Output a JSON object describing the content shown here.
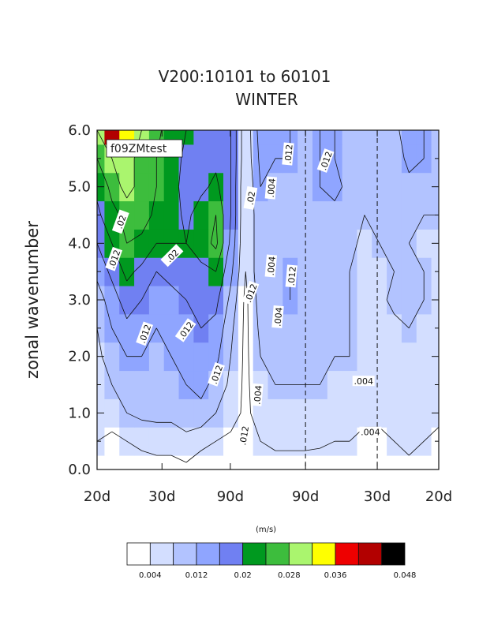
{
  "chart_data": {
    "type": "heatmap",
    "title": "V200:10101 to 60101",
    "subtitle": "WINTER",
    "ylabel": "zonal wavenumber",
    "ylim": [
      0,
      6
    ],
    "y_ticks": [
      "0.0",
      "1.0",
      "2.0",
      "3.0",
      "4.0",
      "5.0",
      "6.0"
    ],
    "x_ticks": [
      "20d",
      "30d",
      "90d",
      "90d",
      "30d",
      "20d"
    ],
    "dashed_lines_at_x_labels": [
      "90d",
      "30d"
    ],
    "inset_label": "f09ZMtest",
    "contour_labels": [
      ".02",
      ".012",
      ".012",
      ".02",
      ".012",
      ".012",
      ".012",
      ".02",
      ".012",
      ".004",
      ".004",
      ".004",
      ".012",
      ".004",
      ".012",
      ".012",
      ".004",
      ".004"
    ],
    "colorbar": {
      "unit_label": "(m/s)",
      "levels": [
        0.004,
        0.008,
        0.012,
        0.016,
        0.02,
        0.024,
        0.028,
        0.032,
        0.036,
        0.04,
        0.044,
        0.048
      ],
      "tick_labels": [
        "0.004",
        "0.012",
        "0.02",
        "0.028",
        "0.036",
        "0.048"
      ],
      "colors": [
        "#ffffff",
        "#d3deff",
        "#b2c3ff",
        "#8fa5ff",
        "#7080f2",
        "#00991f",
        "#3dbd3d",
        "#aaf56e",
        "#ffff00",
        "#ee0000",
        "#b20000",
        "#000000"
      ]
    },
    "x": [
      0.0,
      0.2,
      0.4,
      0.6,
      0.8,
      1.0,
      1.2,
      1.4,
      1.6,
      1.8,
      2.0,
      2.2,
      2.4,
      2.6,
      2.8,
      3.0,
      3.2,
      3.4,
      3.6,
      3.8,
      4.0,
      4.2,
      4.4,
      4.6
    ],
    "y": [
      0.0,
      0.5,
      1.0,
      1.5,
      2.0,
      2.5,
      3.0,
      3.5,
      4.0,
      4.5,
      5.0,
      5.5,
      6.0
    ],
    "z": [
      [
        0.003,
        0.002,
        0.001,
        0.002,
        0.002,
        0.002,
        0.003,
        0.002,
        0.002,
        0.001,
        0.001,
        0.002,
        0.002,
        0.002,
        0.002,
        0.001,
        0.001,
        0.001,
        0.001,
        0.001,
        0.001,
        0.003,
        0.001,
        0.001
      ],
      [
        0.004,
        0.003,
        0.004,
        0.005,
        0.006,
        0.006,
        0.007,
        0.005,
        0.004,
        0.003,
        0.002,
        0.004,
        0.005,
        0.005,
        0.005,
        0.005,
        0.004,
        0.004,
        0.003,
        0.003,
        0.004,
        0.005,
        0.004,
        0.003
      ],
      [
        0.005,
        0.006,
        0.008,
        0.009,
        0.009,
        0.009,
        0.01,
        0.011,
        0.008,
        0.006,
        0.003,
        0.006,
        0.007,
        0.007,
        0.007,
        0.006,
        0.006,
        0.006,
        0.005,
        0.005,
        0.006,
        0.006,
        0.005,
        0.005
      ],
      [
        0.006,
        0.008,
        0.01,
        0.01,
        0.01,
        0.011,
        0.012,
        0.013,
        0.011,
        0.007,
        0.003,
        0.007,
        0.008,
        0.008,
        0.008,
        0.008,
        0.007,
        0.007,
        0.005,
        0.005,
        0.006,
        0.006,
        0.006,
        0.005
      ],
      [
        0.007,
        0.01,
        0.012,
        0.012,
        0.011,
        0.012,
        0.013,
        0.014,
        0.013,
        0.008,
        0.003,
        0.008,
        0.009,
        0.009,
        0.009,
        0.009,
        0.008,
        0.008,
        0.006,
        0.005,
        0.007,
        0.007,
        0.007,
        0.006
      ],
      [
        0.008,
        0.012,
        0.015,
        0.014,
        0.012,
        0.013,
        0.015,
        0.016,
        0.015,
        0.009,
        0.003,
        0.009,
        0.01,
        0.011,
        0.01,
        0.01,
        0.009,
        0.008,
        0.005,
        0.006,
        0.007,
        0.008,
        0.007,
        0.006
      ],
      [
        0.01,
        0.014,
        0.018,
        0.016,
        0.013,
        0.015,
        0.016,
        0.017,
        0.017,
        0.011,
        0.003,
        0.01,
        0.011,
        0.012,
        0.011,
        0.011,
        0.01,
        0.008,
        0.005,
        0.007,
        0.009,
        0.009,
        0.008,
        0.007
      ],
      [
        0.013,
        0.017,
        0.021,
        0.019,
        0.016,
        0.017,
        0.018,
        0.019,
        0.02,
        0.013,
        0.004,
        0.011,
        0.011,
        0.012,
        0.011,
        0.011,
        0.01,
        0.008,
        0.006,
        0.007,
        0.008,
        0.008,
        0.008,
        0.007
      ],
      [
        0.016,
        0.02,
        0.024,
        0.023,
        0.02,
        0.02,
        0.02,
        0.022,
        0.025,
        0.015,
        0.004,
        0.011,
        0.011,
        0.011,
        0.01,
        0.011,
        0.01,
        0.009,
        0.007,
        0.008,
        0.008,
        0.008,
        0.007,
        0.007
      ],
      [
        0.019,
        0.023,
        0.025,
        0.026,
        0.023,
        0.022,
        0.019,
        0.022,
        0.024,
        0.016,
        0.004,
        0.011,
        0.011,
        0.011,
        0.01,
        0.011,
        0.011,
        0.01,
        0.008,
        0.008,
        0.008,
        0.009,
        0.008,
        0.008
      ],
      [
        0.021,
        0.025,
        0.03,
        0.026,
        0.024,
        0.022,
        0.018,
        0.019,
        0.021,
        0.016,
        0.004,
        0.012,
        0.01,
        0.011,
        0.011,
        0.012,
        0.013,
        0.011,
        0.009,
        0.009,
        0.01,
        0.011,
        0.009,
        0.008
      ],
      [
        0.024,
        0.028,
        0.029,
        0.027,
        0.024,
        0.022,
        0.019,
        0.018,
        0.019,
        0.016,
        0.005,
        0.013,
        0.012,
        0.012,
        0.011,
        0.012,
        0.012,
        0.011,
        0.01,
        0.01,
        0.01,
        0.013,
        0.012,
        0.009
      ],
      [
        0.028,
        0.04,
        0.032,
        0.028,
        0.025,
        0.022,
        0.02,
        0.019,
        0.019,
        0.016,
        0.005,
        0.014,
        0.012,
        0.012,
        0.011,
        0.012,
        0.012,
        0.011,
        0.01,
        0.01,
        0.011,
        0.014,
        0.012,
        0.009
      ]
    ]
  }
}
